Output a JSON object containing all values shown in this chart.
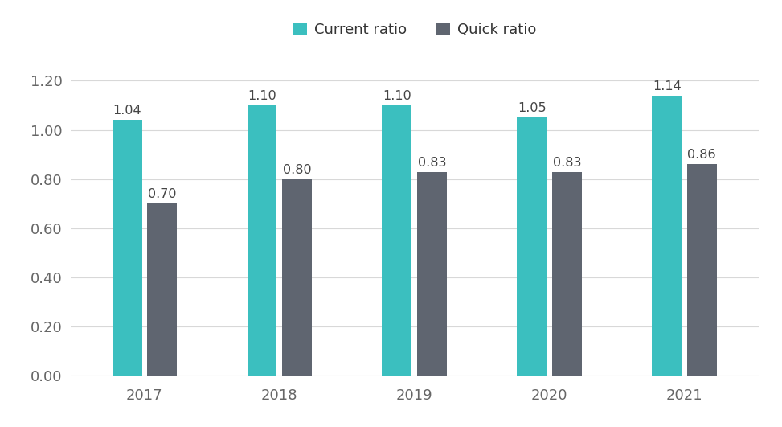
{
  "years": [
    "2017",
    "2018",
    "2019",
    "2020",
    "2021"
  ],
  "current_ratio": [
    1.04,
    1.1,
    1.1,
    1.05,
    1.14
  ],
  "quick_ratio": [
    0.7,
    0.8,
    0.83,
    0.83,
    0.86
  ],
  "current_color": "#3BBFBF",
  "quick_color": "#5F6570",
  "background_color": "#ffffff",
  "ylim": [
    0,
    1.32
  ],
  "yticks": [
    0.0,
    0.2,
    0.4,
    0.6,
    0.8,
    1.0,
    1.2
  ],
  "legend_labels": [
    "Current ratio",
    "Quick ratio"
  ],
  "bar_width": 0.22,
  "bar_gap": 0.04,
  "tick_fontsize": 13,
  "legend_fontsize": 13,
  "annotation_fontsize": 11.5,
  "grid_color": "#d8d8d8"
}
